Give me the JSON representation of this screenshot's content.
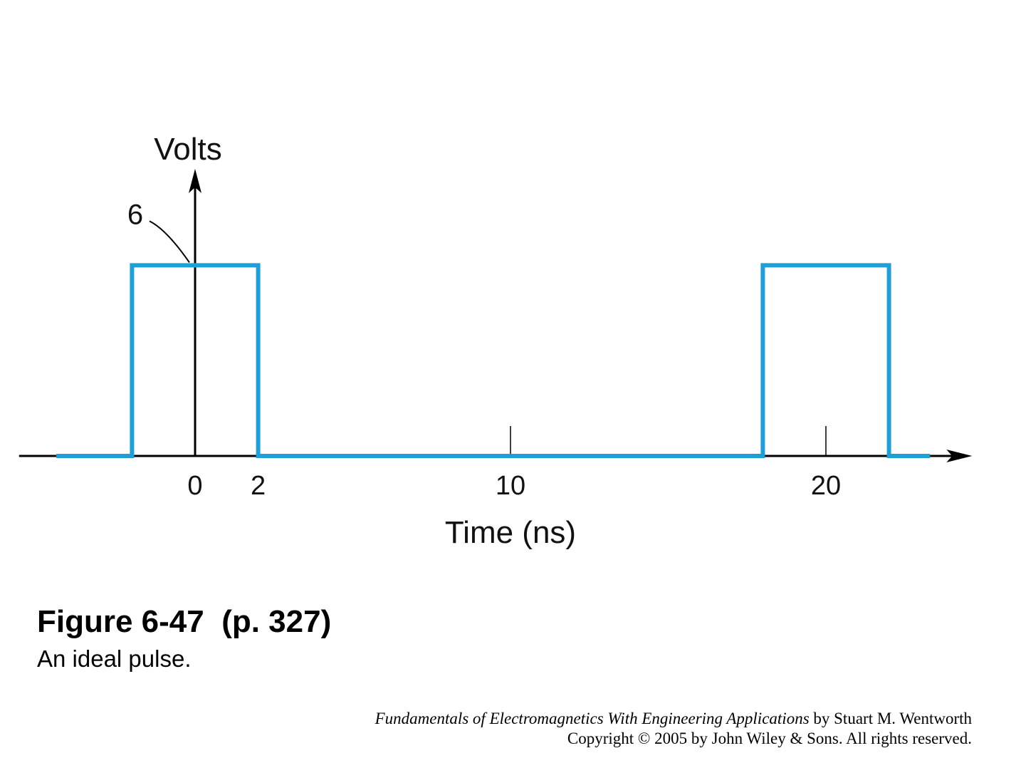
{
  "chart_data": {
    "type": "line",
    "ylabel": "Volts",
    "xlabel": "Time (ns)",
    "x_ticks": [
      {
        "value": 0,
        "label": "0"
      },
      {
        "value": 2,
        "label": "2"
      },
      {
        "value": 10,
        "label": "10"
      },
      {
        "value": 20,
        "label": "20"
      }
    ],
    "annotation": {
      "label": "6",
      "value": 6
    },
    "series": [
      {
        "points": [
          [
            -4.4,
            0
          ],
          [
            -2,
            0
          ],
          [
            -2,
            6
          ],
          [
            2,
            6
          ],
          [
            2,
            0
          ],
          [
            18,
            0
          ],
          [
            18,
            6
          ],
          [
            22,
            6
          ],
          [
            22,
            0
          ],
          [
            23.3,
            0
          ]
        ],
        "color": "#1e9fd8"
      }
    ],
    "xlim": [
      -5.4,
      24.5
    ],
    "ylim": [
      0,
      8.9
    ]
  },
  "figure": {
    "title": "Figure 6-47  (p. 327)",
    "caption": "An ideal pulse."
  },
  "credit": {
    "book_title": "Fundamentals of Electromagnetics With Engineering Applications",
    "author": " by Stuart M. Wentworth",
    "copyright": "Copyright © 2005 by John Wiley & Sons. All rights reserved."
  }
}
